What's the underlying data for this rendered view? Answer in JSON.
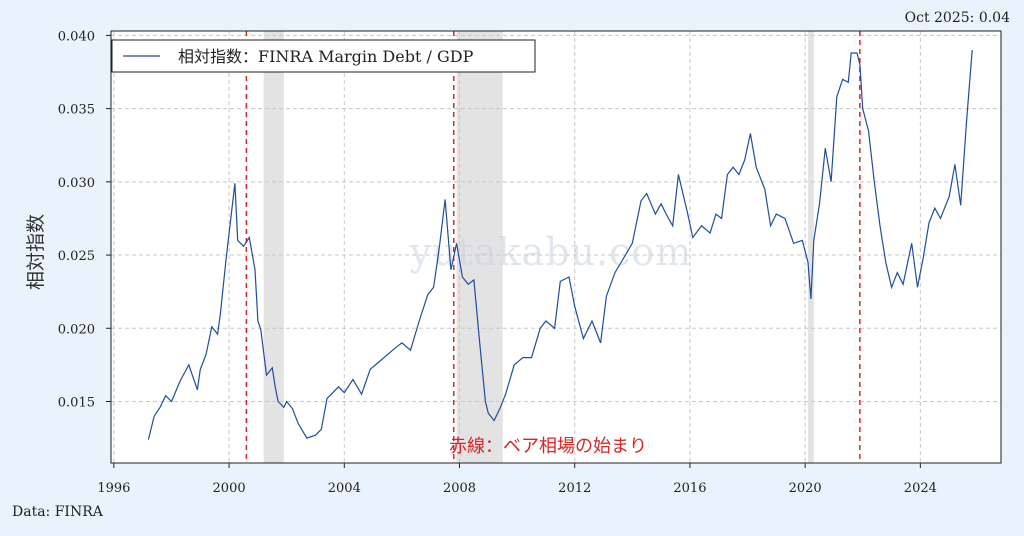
{
  "chart_data": {
    "type": "line",
    "latest_label": "Oct 2025: 0.04",
    "source": "Data: FINRA",
    "ylabel": "相対指数",
    "legend": "相対指数：FINRA Margin Debt / GDP",
    "annotation": "赤線：ベア相場の始まり",
    "watermark": "yutakabu.com",
    "xlim": [
      1995.9,
      2026.8
    ],
    "ylim": [
      0.0108,
      0.0403
    ],
    "x_ticks": [
      1996,
      2000,
      2004,
      2008,
      2012,
      2016,
      2020,
      2024
    ],
    "x_tick_labels": [
      "1996",
      "2000",
      "2004",
      "2008",
      "2012",
      "2016",
      "2020",
      "2024"
    ],
    "y_ticks": [
      0.015,
      0.02,
      0.025,
      0.03,
      0.035,
      0.04
    ],
    "y_tick_labels": [
      "0.015",
      "0.020",
      "0.025",
      "0.030",
      "0.035",
      "0.040"
    ],
    "grid": true,
    "legend_position": "top-left",
    "colors": {
      "series": "#1f4e9c",
      "bear_line": "#d62728",
      "recession": "#e3e3e3"
    },
    "bear_market_starts": [
      2000.6,
      2007.8,
      2021.9
    ],
    "recessions": [
      [
        2001.2,
        2001.9
      ],
      [
        2007.9,
        2009.5
      ],
      [
        2020.1,
        2020.3
      ]
    ],
    "series": [
      {
        "name": "相対指数：FINRA Margin Debt / GDP",
        "x": [
          1997.2,
          1997.3,
          1997.4,
          1997.6,
          1997.8,
          1998.0,
          1998.3,
          1998.6,
          1998.9,
          1999.0,
          1999.2,
          1999.4,
          1999.6,
          1999.7,
          1999.9,
          2000.0,
          2000.2,
          2000.3,
          2000.5,
          2000.7,
          2000.9,
          2001.0,
          2001.1,
          2001.3,
          2001.5,
          2001.6,
          2001.7,
          2001.9,
          2002.0,
          2002.2,
          2002.4,
          2002.7,
          2003.0,
          2003.2,
          2003.4,
          2003.6,
          2003.8,
          2004.0,
          2004.3,
          2004.6,
          2004.9,
          2005.2,
          2005.5,
          2005.8,
          2006.0,
          2006.3,
          2006.6,
          2006.9,
          2007.1,
          2007.3,
          2007.5,
          2007.7,
          2007.9,
          2008.1,
          2008.3,
          2008.5,
          2008.7,
          2008.9,
          2009.0,
          2009.2,
          2009.4,
          2009.6,
          2009.9,
          2010.2,
          2010.5,
          2010.8,
          2011.0,
          2011.3,
          2011.5,
          2011.8,
          2012.0,
          2012.3,
          2012.6,
          2012.9,
          2013.1,
          2013.4,
          2013.7,
          2014.0,
          2014.3,
          2014.5,
          2014.8,
          2015.0,
          2015.2,
          2015.4,
          2015.6,
          2015.9,
          2016.1,
          2016.4,
          2016.7,
          2016.9,
          2017.1,
          2017.3,
          2017.5,
          2017.7,
          2017.9,
          2018.1,
          2018.3,
          2018.6,
          2018.8,
          2019.0,
          2019.3,
          2019.6,
          2019.9,
          2020.1,
          2020.2,
          2020.3,
          2020.5,
          2020.7,
          2020.9,
          2021.1,
          2021.3,
          2021.5,
          2021.6,
          2021.8,
          2021.9,
          2022.0,
          2022.2,
          2022.4,
          2022.6,
          2022.8,
          2023.0,
          2023.2,
          2023.4,
          2023.7,
          2023.9,
          2024.1,
          2024.3,
          2024.5,
          2024.7,
          2025.0,
          2025.2,
          2025.4,
          2025.6,
          2025.7,
          2025.8
        ],
        "values": [
          0.0124,
          0.0132,
          0.014,
          0.0146,
          0.0154,
          0.015,
          0.0164,
          0.0175,
          0.0158,
          0.0172,
          0.0182,
          0.0201,
          0.0196,
          0.021,
          0.0248,
          0.0265,
          0.0299,
          0.026,
          0.0256,
          0.0262,
          0.024,
          0.0205,
          0.0199,
          0.0168,
          0.0173,
          0.016,
          0.015,
          0.0146,
          0.015,
          0.0145,
          0.0135,
          0.0125,
          0.0127,
          0.0131,
          0.0152,
          0.0156,
          0.016,
          0.0156,
          0.0165,
          0.0155,
          0.0172,
          0.0177,
          0.0182,
          0.0187,
          0.019,
          0.0185,
          0.0205,
          0.0223,
          0.0228,
          0.0255,
          0.0288,
          0.024,
          0.0258,
          0.0235,
          0.023,
          0.0233,
          0.019,
          0.015,
          0.0142,
          0.0137,
          0.0145,
          0.0155,
          0.0175,
          0.018,
          0.018,
          0.02,
          0.0205,
          0.02,
          0.0232,
          0.0235,
          0.0215,
          0.0193,
          0.0205,
          0.019,
          0.0222,
          0.0238,
          0.0248,
          0.0258,
          0.0287,
          0.0292,
          0.0278,
          0.0285,
          0.0277,
          0.027,
          0.0305,
          0.028,
          0.0262,
          0.027,
          0.0265,
          0.0278,
          0.0275,
          0.0305,
          0.031,
          0.0305,
          0.0315,
          0.0333,
          0.031,
          0.0295,
          0.027,
          0.0278,
          0.0275,
          0.0258,
          0.026,
          0.0245,
          0.022,
          0.026,
          0.0285,
          0.0323,
          0.03,
          0.0358,
          0.037,
          0.0368,
          0.0388,
          0.0388,
          0.038,
          0.035,
          0.0335,
          0.03,
          0.027,
          0.0245,
          0.0228,
          0.0238,
          0.023,
          0.0258,
          0.0228,
          0.0248,
          0.0272,
          0.0282,
          0.0275,
          0.029,
          0.0312,
          0.0284,
          0.034,
          0.0365,
          0.039
        ]
      }
    ]
  }
}
